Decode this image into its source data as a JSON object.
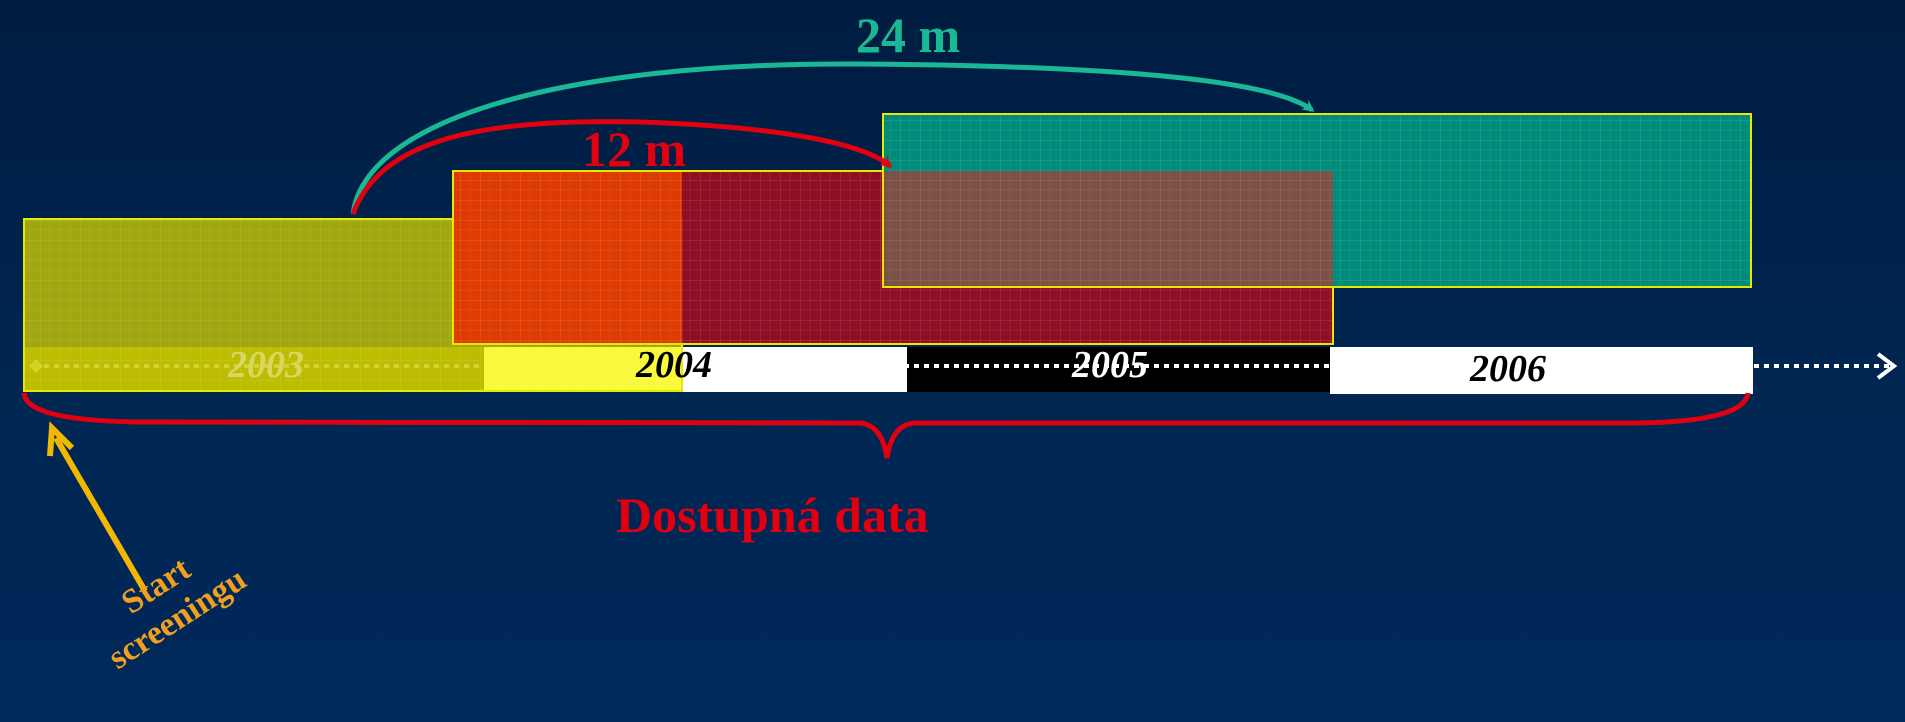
{
  "colors": {
    "background": "#002550",
    "yellow_window": "#c8c800",
    "red_window": "#9a0d22",
    "teal_window": "#008c7a",
    "arrow_24m": "#1ab894",
    "arrow_12m": "#e00010",
    "brace": "#e00010",
    "available_data_text": "#e00010",
    "start_arrow": "#f2b800",
    "start_text": "#f0a020",
    "timeline_dots": "#ffffff"
  },
  "timeline": {
    "years": [
      "2003",
      "2004",
      "2005",
      "2006"
    ]
  },
  "intervals": [
    {
      "label": "24 m",
      "color": "#1ab894"
    },
    {
      "label": "12 m",
      "color": "#e00010"
    }
  ],
  "brace_label": "Dostupná data",
  "start_label": {
    "line1": "Start",
    "line2": "screeningu"
  },
  "icons": {
    "timeline_arrow": "arrow-right-icon",
    "start_pointer": "arrow-up-left-icon",
    "data_brace": "curly-brace-icon"
  }
}
